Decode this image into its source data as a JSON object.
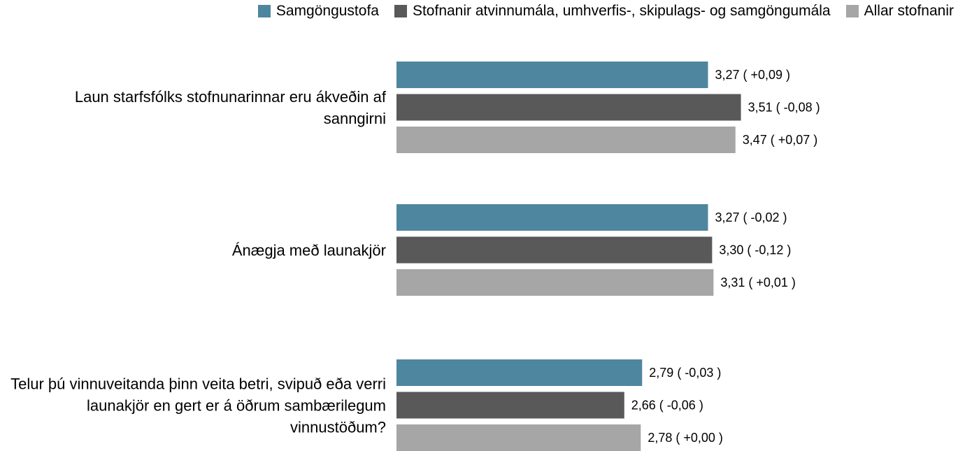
{
  "chart_data": {
    "type": "hbar",
    "categories": [
      "Laun starfsfólks stofnunarinnar eru ákveðin af sanngirni",
      "Ánægja með launakjör",
      "Telur þú vinnuveitanda þinn veita betri, svipuð eða verri launakjör en gert er á öðrum sambærilegum vinnustöðum?"
    ],
    "series": [
      {
        "name": "Samgöngustofa",
        "color": "#4e86a0",
        "values": [
          3.27,
          3.27,
          2.79
        ],
        "value_labels": [
          "3,27 ( +0,09 )",
          "3,27 ( -0,02 )",
          "2,79 ( -0,03 )"
        ]
      },
      {
        "name": "Stofnanir atvinnumála, umhverfis-, skipulags- og samgöngumála",
        "color": "#595959",
        "values": [
          3.51,
          3.3,
          2.66
        ],
        "value_labels": [
          "3,51 ( -0,08 )",
          "3,30 ( -0,12 )",
          "2,66 ( -0,06 )"
        ]
      },
      {
        "name": "Allar stofnanir",
        "color": "#a6a6a6",
        "values": [
          3.47,
          3.31,
          2.78
        ],
        "value_labels": [
          "3,47 ( +0,07 )",
          "3,31 ( +0,01 )",
          "2,78 ( +0,00 )"
        ]
      }
    ],
    "xlim": [
      1,
      5
    ]
  }
}
